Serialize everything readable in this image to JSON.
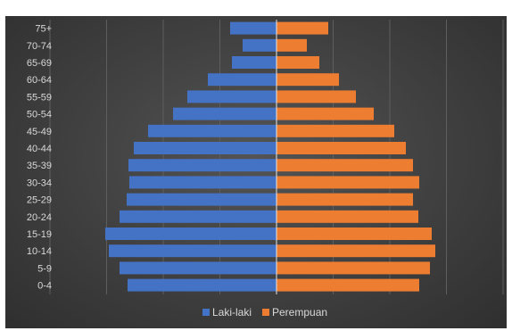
{
  "chart_data": {
    "type": "bar",
    "orientation": "horizontal",
    "title": "",
    "categories": [
      "75+",
      "70-74",
      "65-69",
      "60-64",
      "55-59",
      "50-54",
      "45-49",
      "40-44",
      "35-39",
      "30-34",
      "25-29",
      "20-24",
      "15-19",
      "10-14",
      "5-9",
      "0-4"
    ],
    "series": [
      {
        "name": "Laki-laki",
        "color": "#4472C4",
        "values": [
          52,
          38,
          50,
          77,
          100,
          116,
          144,
          160,
          166,
          165,
          168,
          176,
          192,
          188,
          176,
          167
        ]
      },
      {
        "name": "Perempuan",
        "color": "#ED7D31",
        "values": [
          58,
          34,
          48,
          70,
          89,
          109,
          132,
          145,
          153,
          160,
          153,
          159,
          174,
          178,
          172,
          160
        ]
      }
    ],
    "xlim": [
      -200,
      200
    ],
    "grid": true,
    "legend": "bottom"
  }
}
